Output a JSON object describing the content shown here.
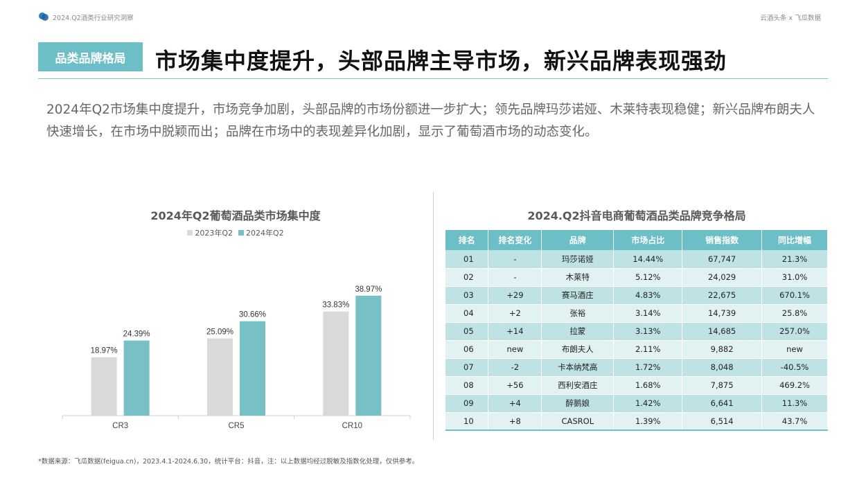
{
  "header": {
    "left_text": "2024.Q2酒类行业研究洞察",
    "right_text": "云酒头条 x 飞瓜数据"
  },
  "section_tag": "品类品牌格局",
  "headline": "市场集中度提升，头部品牌主导市场，新兴品牌表现强劲",
  "summary": "2024年Q2市场集中度提升，市场竞争加剧，头部品牌的市场份额进一步扩大；领先品牌玛莎诺娅、木莱特表现稳健；新兴品牌布朗夫人快速增长，在市场中脱颖而出；品牌在市场中的表现差异化加剧，显示了葡萄酒市场的动态变化。",
  "colors": {
    "accent": "#6cbfc6",
    "series_2023": "#d9d9d9",
    "series_2024": "#76c0c6"
  },
  "chart_data": {
    "type": "bar",
    "title": "2024年Q2葡萄酒品类市场集中度",
    "categories": [
      "CR3",
      "CR5",
      "CR10"
    ],
    "series": [
      {
        "name": "2023年Q2",
        "values": [
          18.97,
          25.09,
          33.83
        ],
        "labels": [
          "18.97%",
          "25.09%",
          "33.83%"
        ]
      },
      {
        "name": "2024年Q2",
        "values": [
          24.39,
          30.66,
          38.97
        ],
        "labels": [
          "24.39%",
          "30.66%",
          "38.97%"
        ]
      }
    ],
    "ylim": [
      0,
      45
    ],
    "legend": "top-center",
    "grid": false
  },
  "table": {
    "title": "2024.Q2抖音电商葡萄酒品类品牌竞争格局",
    "headers": [
      "排名",
      "排名变化",
      "品牌",
      "市场占比",
      "销售指数",
      "同比增幅"
    ],
    "rows": [
      [
        "01",
        "-",
        "玛莎诺娅",
        "14.44%",
        "67,747",
        "21.3%"
      ],
      [
        "02",
        "-",
        "木莱特",
        "5.12%",
        "24,029",
        "31.0%"
      ],
      [
        "03",
        "+29",
        "赛马酒庄",
        "4.83%",
        "22,675",
        "670.1%"
      ],
      [
        "04",
        "+2",
        "张裕",
        "3.14%",
        "14,739",
        "25.8%"
      ],
      [
        "05",
        "+14",
        "拉蒙",
        "3.13%",
        "14,685",
        "257.0%"
      ],
      [
        "06",
        "new",
        "布朗夫人",
        "2.11%",
        "9,882",
        "new"
      ],
      [
        "07",
        "-2",
        "卡本纳梵高",
        "1.72%",
        "8,048",
        "-40.5%"
      ],
      [
        "08",
        "+56",
        "西利安酒庄",
        "1.68%",
        "7,875",
        "469.2%"
      ],
      [
        "09",
        "+4",
        "醉鹅娘",
        "1.42%",
        "6,641",
        "11.3%"
      ],
      [
        "10",
        "+8",
        "CASROL",
        "1.39%",
        "6,514",
        "43.7%"
      ]
    ]
  },
  "footnote": "*数据来源：飞瓜数据(feigua.cn)，2023.4.1-2024.6.30，统计平台：抖音，注：以上数据均经过脱敏及指数化处理，仅供参考。"
}
